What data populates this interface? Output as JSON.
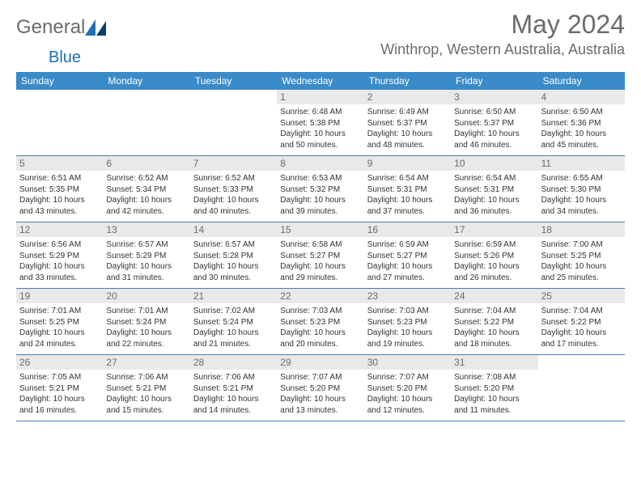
{
  "logo": {
    "word1": "General",
    "word2": "Blue"
  },
  "title": "May 2024",
  "location": "Winthrop, Western Australia, Australia",
  "colors": {
    "header_bg": "#3a8bc9",
    "header_text": "#ffffff",
    "daynum_bg": "#e9e9e9",
    "daynum_text": "#6b6b6b",
    "body_text": "#333333",
    "rule": "#4a7ba6",
    "logo_gray": "#6b6b6b",
    "logo_blue": "#1f6fb2"
  },
  "weekdays": [
    "Sunday",
    "Monday",
    "Tuesday",
    "Wednesday",
    "Thursday",
    "Friday",
    "Saturday"
  ],
  "weeks": [
    [
      {
        "day": "",
        "sunrise": "",
        "sunset": "",
        "daylight1": "",
        "daylight2": ""
      },
      {
        "day": "",
        "sunrise": "",
        "sunset": "",
        "daylight1": "",
        "daylight2": ""
      },
      {
        "day": "",
        "sunrise": "",
        "sunset": "",
        "daylight1": "",
        "daylight2": ""
      },
      {
        "day": "1",
        "sunrise": "Sunrise: 6:48 AM",
        "sunset": "Sunset: 5:38 PM",
        "daylight1": "Daylight: 10 hours",
        "daylight2": "and 50 minutes."
      },
      {
        "day": "2",
        "sunrise": "Sunrise: 6:49 AM",
        "sunset": "Sunset: 5:37 PM",
        "daylight1": "Daylight: 10 hours",
        "daylight2": "and 48 minutes."
      },
      {
        "day": "3",
        "sunrise": "Sunrise: 6:50 AM",
        "sunset": "Sunset: 5:37 PM",
        "daylight1": "Daylight: 10 hours",
        "daylight2": "and 46 minutes."
      },
      {
        "day": "4",
        "sunrise": "Sunrise: 6:50 AM",
        "sunset": "Sunset: 5:36 PM",
        "daylight1": "Daylight: 10 hours",
        "daylight2": "and 45 minutes."
      }
    ],
    [
      {
        "day": "5",
        "sunrise": "Sunrise: 6:51 AM",
        "sunset": "Sunset: 5:35 PM",
        "daylight1": "Daylight: 10 hours",
        "daylight2": "and 43 minutes."
      },
      {
        "day": "6",
        "sunrise": "Sunrise: 6:52 AM",
        "sunset": "Sunset: 5:34 PM",
        "daylight1": "Daylight: 10 hours",
        "daylight2": "and 42 minutes."
      },
      {
        "day": "7",
        "sunrise": "Sunrise: 6:52 AM",
        "sunset": "Sunset: 5:33 PM",
        "daylight1": "Daylight: 10 hours",
        "daylight2": "and 40 minutes."
      },
      {
        "day": "8",
        "sunrise": "Sunrise: 6:53 AM",
        "sunset": "Sunset: 5:32 PM",
        "daylight1": "Daylight: 10 hours",
        "daylight2": "and 39 minutes."
      },
      {
        "day": "9",
        "sunrise": "Sunrise: 6:54 AM",
        "sunset": "Sunset: 5:31 PM",
        "daylight1": "Daylight: 10 hours",
        "daylight2": "and 37 minutes."
      },
      {
        "day": "10",
        "sunrise": "Sunrise: 6:54 AM",
        "sunset": "Sunset: 5:31 PM",
        "daylight1": "Daylight: 10 hours",
        "daylight2": "and 36 minutes."
      },
      {
        "day": "11",
        "sunrise": "Sunrise: 6:55 AM",
        "sunset": "Sunset: 5:30 PM",
        "daylight1": "Daylight: 10 hours",
        "daylight2": "and 34 minutes."
      }
    ],
    [
      {
        "day": "12",
        "sunrise": "Sunrise: 6:56 AM",
        "sunset": "Sunset: 5:29 PM",
        "daylight1": "Daylight: 10 hours",
        "daylight2": "and 33 minutes."
      },
      {
        "day": "13",
        "sunrise": "Sunrise: 6:57 AM",
        "sunset": "Sunset: 5:29 PM",
        "daylight1": "Daylight: 10 hours",
        "daylight2": "and 31 minutes."
      },
      {
        "day": "14",
        "sunrise": "Sunrise: 6:57 AM",
        "sunset": "Sunset: 5:28 PM",
        "daylight1": "Daylight: 10 hours",
        "daylight2": "and 30 minutes."
      },
      {
        "day": "15",
        "sunrise": "Sunrise: 6:58 AM",
        "sunset": "Sunset: 5:27 PM",
        "daylight1": "Daylight: 10 hours",
        "daylight2": "and 29 minutes."
      },
      {
        "day": "16",
        "sunrise": "Sunrise: 6:59 AM",
        "sunset": "Sunset: 5:27 PM",
        "daylight1": "Daylight: 10 hours",
        "daylight2": "and 27 minutes."
      },
      {
        "day": "17",
        "sunrise": "Sunrise: 6:59 AM",
        "sunset": "Sunset: 5:26 PM",
        "daylight1": "Daylight: 10 hours",
        "daylight2": "and 26 minutes."
      },
      {
        "day": "18",
        "sunrise": "Sunrise: 7:00 AM",
        "sunset": "Sunset: 5:25 PM",
        "daylight1": "Daylight: 10 hours",
        "daylight2": "and 25 minutes."
      }
    ],
    [
      {
        "day": "19",
        "sunrise": "Sunrise: 7:01 AM",
        "sunset": "Sunset: 5:25 PM",
        "daylight1": "Daylight: 10 hours",
        "daylight2": "and 24 minutes."
      },
      {
        "day": "20",
        "sunrise": "Sunrise: 7:01 AM",
        "sunset": "Sunset: 5:24 PM",
        "daylight1": "Daylight: 10 hours",
        "daylight2": "and 22 minutes."
      },
      {
        "day": "21",
        "sunrise": "Sunrise: 7:02 AM",
        "sunset": "Sunset: 5:24 PM",
        "daylight1": "Daylight: 10 hours",
        "daylight2": "and 21 minutes."
      },
      {
        "day": "22",
        "sunrise": "Sunrise: 7:03 AM",
        "sunset": "Sunset: 5:23 PM",
        "daylight1": "Daylight: 10 hours",
        "daylight2": "and 20 minutes."
      },
      {
        "day": "23",
        "sunrise": "Sunrise: 7:03 AM",
        "sunset": "Sunset: 5:23 PM",
        "daylight1": "Daylight: 10 hours",
        "daylight2": "and 19 minutes."
      },
      {
        "day": "24",
        "sunrise": "Sunrise: 7:04 AM",
        "sunset": "Sunset: 5:22 PM",
        "daylight1": "Daylight: 10 hours",
        "daylight2": "and 18 minutes."
      },
      {
        "day": "25",
        "sunrise": "Sunrise: 7:04 AM",
        "sunset": "Sunset: 5:22 PM",
        "daylight1": "Daylight: 10 hours",
        "daylight2": "and 17 minutes."
      }
    ],
    [
      {
        "day": "26",
        "sunrise": "Sunrise: 7:05 AM",
        "sunset": "Sunset: 5:21 PM",
        "daylight1": "Daylight: 10 hours",
        "daylight2": "and 16 minutes."
      },
      {
        "day": "27",
        "sunrise": "Sunrise: 7:06 AM",
        "sunset": "Sunset: 5:21 PM",
        "daylight1": "Daylight: 10 hours",
        "daylight2": "and 15 minutes."
      },
      {
        "day": "28",
        "sunrise": "Sunrise: 7:06 AM",
        "sunset": "Sunset: 5:21 PM",
        "daylight1": "Daylight: 10 hours",
        "daylight2": "and 14 minutes."
      },
      {
        "day": "29",
        "sunrise": "Sunrise: 7:07 AM",
        "sunset": "Sunset: 5:20 PM",
        "daylight1": "Daylight: 10 hours",
        "daylight2": "and 13 minutes."
      },
      {
        "day": "30",
        "sunrise": "Sunrise: 7:07 AM",
        "sunset": "Sunset: 5:20 PM",
        "daylight1": "Daylight: 10 hours",
        "daylight2": "and 12 minutes."
      },
      {
        "day": "31",
        "sunrise": "Sunrise: 7:08 AM",
        "sunset": "Sunset: 5:20 PM",
        "daylight1": "Daylight: 10 hours",
        "daylight2": "and 11 minutes."
      },
      {
        "day": "",
        "sunrise": "",
        "sunset": "",
        "daylight1": "",
        "daylight2": ""
      }
    ]
  ]
}
